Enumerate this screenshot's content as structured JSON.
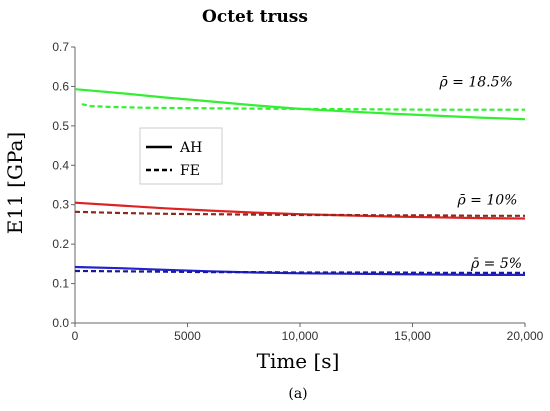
{
  "chart_data": {
    "type": "line",
    "title": "Octet truss",
    "xlabel": "Time [s]",
    "ylabel": "E11 [GPa]",
    "xlim": [
      0,
      20000
    ],
    "ylim": [
      0,
      0.7
    ],
    "x_ticks": [
      {
        "value": 0,
        "label": "0"
      },
      {
        "value": 5000,
        "label": "5000"
      },
      {
        "value": 10000,
        "label": "10,000"
      },
      {
        "value": 15000,
        "label": "15,000"
      },
      {
        "value": 20000,
        "label": "20,000"
      }
    ],
    "y_ticks": [
      {
        "value": 0,
        "label": "0.0"
      },
      {
        "value": 0.1,
        "label": "0.1"
      },
      {
        "value": 0.2,
        "label": "0.2"
      },
      {
        "value": 0.3,
        "label": "0.3"
      },
      {
        "value": 0.4,
        "label": "0.4"
      },
      {
        "value": 0.5,
        "label": "0.5"
      },
      {
        "value": 0.6,
        "label": "0.6"
      },
      {
        "value": 0.7,
        "label": "0.7"
      }
    ],
    "legend": {
      "placement": "left-middle",
      "entries": [
        {
          "name": "AH",
          "style": "solid"
        },
        {
          "name": "FE",
          "style": "dashed"
        }
      ]
    },
    "annotations": [
      {
        "label": "ρ̄ = 18.5%",
        "x": 16200,
        "y": 0.6
      },
      {
        "label": "ρ̄ = 10%",
        "x": 17000,
        "y": 0.3
      },
      {
        "label": "ρ̄ = 5%",
        "x": 17600,
        "y": 0.14
      }
    ],
    "series": [
      {
        "group": "18.5%",
        "style": "solid",
        "color": "#33ee33",
        "x": [
          0,
          2000,
          4000,
          6000,
          8000,
          10000,
          12000,
          14000,
          16000,
          18000,
          20000
        ],
        "y": [
          0.593,
          0.583,
          0.572,
          0.562,
          0.552,
          0.543,
          0.537,
          0.531,
          0.526,
          0.521,
          0.517
        ]
      },
      {
        "group": "18.5%",
        "style": "dashed",
        "color": "#33ee33",
        "x": [
          300,
          700,
          1500,
          3000,
          5000,
          7000,
          10000,
          13000,
          16000,
          20000
        ],
        "y": [
          0.555,
          0.55,
          0.548,
          0.546,
          0.545,
          0.544,
          0.543,
          0.542,
          0.541,
          0.541
        ]
      },
      {
        "group": "10%",
        "style": "solid",
        "color": "#dd2222",
        "x": [
          0,
          2000,
          4000,
          6000,
          8000,
          10000,
          12000,
          14000,
          16000,
          18000,
          20000
        ],
        "y": [
          0.305,
          0.298,
          0.291,
          0.285,
          0.28,
          0.276,
          0.273,
          0.27,
          0.268,
          0.266,
          0.265
        ]
      },
      {
        "group": "10%",
        "style": "dashed",
        "color": "#8b2a1a",
        "x": [
          0,
          2000,
          4000,
          6000,
          8000,
          10000,
          12000,
          14000,
          16000,
          18000,
          20000
        ],
        "y": [
          0.282,
          0.279,
          0.277,
          0.276,
          0.275,
          0.274,
          0.274,
          0.273,
          0.273,
          0.272,
          0.272
        ]
      },
      {
        "group": "5%",
        "style": "solid",
        "color": "#2222cc",
        "x": [
          0,
          2000,
          4000,
          6000,
          8000,
          10000,
          12000,
          14000,
          16000,
          18000,
          20000
        ],
        "y": [
          0.142,
          0.139,
          0.135,
          0.131,
          0.128,
          0.126,
          0.125,
          0.124,
          0.123,
          0.122,
          0.122
        ]
      },
      {
        "group": "5%",
        "style": "dashed",
        "color": "#1a1a99",
        "x": [
          0,
          2000,
          4000,
          6000,
          8000,
          10000,
          12000,
          14000,
          16000,
          18000,
          20000
        ],
        "y": [
          0.132,
          0.131,
          0.13,
          0.129,
          0.129,
          0.128,
          0.128,
          0.128,
          0.127,
          0.127,
          0.127
        ]
      }
    ]
  },
  "caption": "(a)"
}
